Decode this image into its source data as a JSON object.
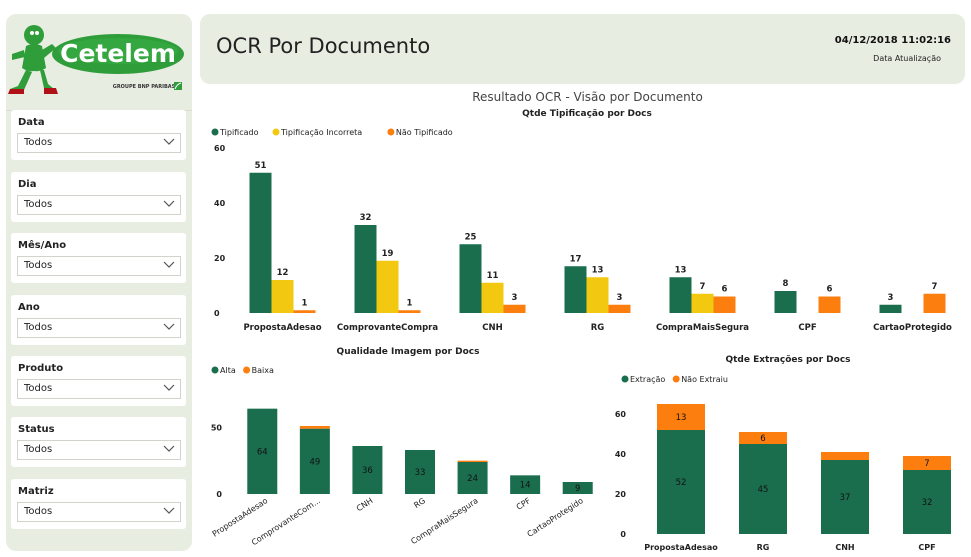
{
  "logo": {
    "brand": "Cetelem",
    "tagline": "GROUPE BNP PARIBAS"
  },
  "filters": [
    {
      "label": "Data",
      "value": "Todos"
    },
    {
      "label": "Dia",
      "value": "Todos"
    },
    {
      "label": "Mês/Ano",
      "value": "Todos"
    },
    {
      "label": "Ano",
      "value": "Todos"
    },
    {
      "label": "Produto",
      "value": "Todos"
    },
    {
      "label": "Status",
      "value": "Todos"
    },
    {
      "label": "Matriz",
      "value": "Todos"
    }
  ],
  "header": {
    "title": "OCR Por Documento",
    "datetime": "04/12/2018 11:02:16",
    "datetime_label": "Data Atualização"
  },
  "report_title": "Resultado OCR - Visão por Documento",
  "colors": {
    "green": "#1a6e4e",
    "yellow": "#f2c811",
    "orange": "#fb7e0f",
    "panel": "#e8ede2"
  },
  "chart_data": [
    {
      "type": "bar",
      "title": "Qtde Tipificação por Docs",
      "categories": [
        "PropostaAdesao",
        "ComprovanteCompra",
        "CNH",
        "RG",
        "CompraMaisSegura",
        "CPF",
        "CartaoProtegido"
      ],
      "series": [
        {
          "name": "Tipificado",
          "color": "#1a6e4e",
          "values": [
            51,
            32,
            25,
            17,
            13,
            8,
            3
          ]
        },
        {
          "name": "Tipificação Incorreta",
          "color": "#f2c811",
          "values": [
            12,
            19,
            11,
            13,
            7,
            null,
            null
          ]
        },
        {
          "name": "Não Tipificado",
          "color": "#fb7e0f",
          "values": [
            1,
            1,
            3,
            3,
            6,
            6,
            7
          ]
        }
      ],
      "yticks": [
        0,
        20,
        40,
        60
      ],
      "ylim": [
        0,
        60
      ],
      "legend": "top-left"
    },
    {
      "type": "bar",
      "stacked": true,
      "title": "Qualidade Imagem por Docs",
      "categories": [
        "PropostaAdesao",
        "ComprovanteCom...",
        "CNH",
        "RG",
        "CompraMaisSegura",
        "CPF",
        "CartaoProtegido"
      ],
      "series": [
        {
          "name": "Alta",
          "color": "#1a6e4e",
          "values": [
            64,
            49,
            36,
            33,
            24,
            14,
            9
          ]
        },
        {
          "name": "Baixa",
          "color": "#fb7e0f",
          "values": [
            0,
            2,
            0,
            0,
            1,
            0,
            0
          ]
        }
      ],
      "yticks": [
        0,
        50
      ],
      "ylim": [
        0,
        75
      ],
      "legend": "top-left"
    },
    {
      "type": "bar",
      "stacked": true,
      "title": "Qtde Extrações por Docs",
      "categories": [
        "PropostaAdesao",
        "RG",
        "CNH",
        "CPF"
      ],
      "series": [
        {
          "name": "Extração",
          "color": "#1a6e4e",
          "values": [
            52,
            45,
            37,
            32
          ]
        },
        {
          "name": "Não Extraiu",
          "color": "#fb7e0f",
          "values": [
            13,
            6,
            4,
            7
          ]
        }
      ],
      "segment_labels": [
        [
          52,
          13
        ],
        [
          45,
          6
        ],
        [
          37,
          null
        ],
        [
          32,
          7
        ]
      ],
      "yticks": [
        0,
        20,
        40,
        60
      ],
      "ylim": [
        0,
        70
      ],
      "legend": "top-left"
    }
  ]
}
